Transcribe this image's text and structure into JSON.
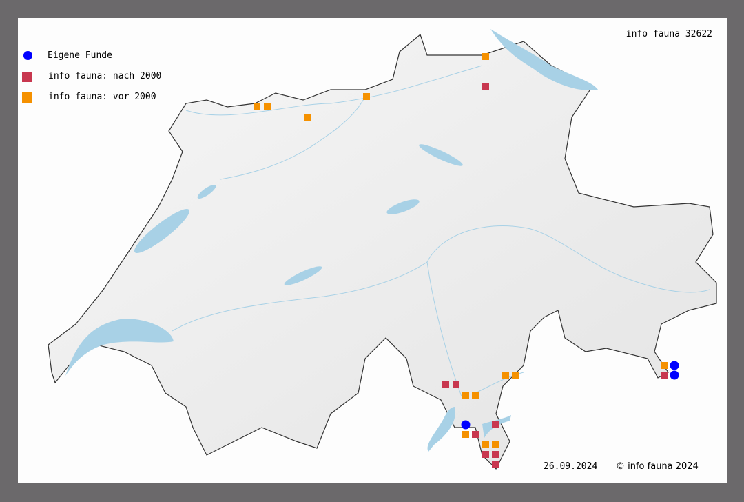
{
  "map_title": "info fauna 32622",
  "legend": [
    {
      "label": "Eigene Funde",
      "shape": "circle",
      "color": "#0000ff"
    },
    {
      "label": "info fauna: nach 2000",
      "shape": "square",
      "color": "#c8374f"
    },
    {
      "label": "info fauna: vor 2000",
      "shape": "square",
      "color": "#f59100"
    }
  ],
  "footer": {
    "date": "26.09.2024",
    "copyright": "© info fauna 2024"
  },
  "colors": {
    "background_frame": "#6b696b",
    "lake": "#a8d1e6",
    "border": "#333333",
    "land": "#f0f0f0"
  }
}
